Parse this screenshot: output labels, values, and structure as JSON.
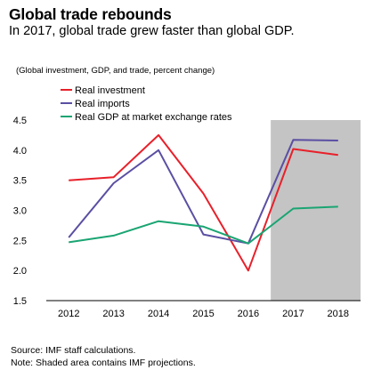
{
  "title": "Global trade rebounds",
  "subtitle": "In 2017, global trade grew faster than global GDP.",
  "unit_note": "(Global investment, GDP, and trade, percent change)",
  "source_lines": [
    "Source: IMF staff calculations.",
    "Note: Shaded area contains IMF projections."
  ],
  "colors": {
    "shade": "#c4c4c4"
  },
  "chart_data": {
    "type": "line",
    "x": [
      "2012",
      "2013",
      "2014",
      "2015",
      "2016",
      "2017",
      "2018"
    ],
    "ylim": [
      1.5,
      4.5
    ],
    "yticks": [
      "1.5",
      "2.0",
      "2.5",
      "3.0",
      "3.5",
      "4.0",
      "4.5"
    ],
    "shaded_range": [
      "2017",
      "2018"
    ],
    "legend_position": "top-left",
    "grid": false,
    "series": [
      {
        "name": "Real investment",
        "color": "#e8202a",
        "values": [
          3.5,
          3.55,
          4.25,
          3.28,
          2.0,
          4.02,
          3.92
        ]
      },
      {
        "name": "Real imports",
        "color": "#5a4fa3",
        "values": [
          2.55,
          3.45,
          4.0,
          2.6,
          2.45,
          4.17,
          4.16
        ]
      },
      {
        "name": "Real GDP at market exchange rates",
        "color": "#1aa573",
        "values": [
          2.47,
          2.58,
          2.82,
          2.73,
          2.45,
          3.03,
          3.06
        ]
      }
    ]
  }
}
